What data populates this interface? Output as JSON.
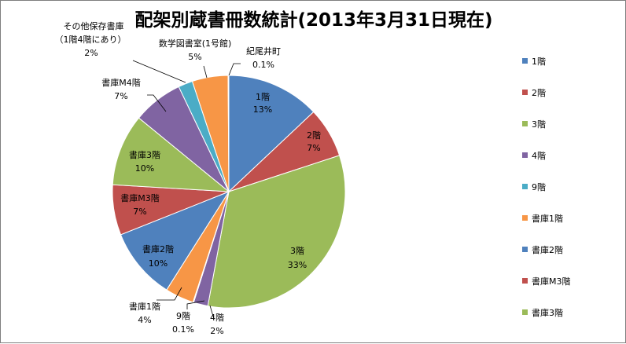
{
  "chart_data": {
    "type": "pie",
    "title": "配架別蔵書冊数統計(2013年3月31日現在)",
    "slices": [
      {
        "name": "1階",
        "value": 13,
        "label": "13%",
        "color": "#4f81bd"
      },
      {
        "name": "2階",
        "value": 7,
        "label": "7%",
        "color": "#c0504d"
      },
      {
        "name": "3階",
        "value": 33,
        "label": "33%",
        "color": "#9bbb59"
      },
      {
        "name": "4階",
        "value": 2,
        "label": "2%",
        "color": "#8064a2"
      },
      {
        "name": "9階",
        "value": 0.1,
        "label": "0.1%",
        "color": "#4bacc6"
      },
      {
        "name": "書庫1階",
        "value": 4,
        "label": "4%",
        "color": "#f79646"
      },
      {
        "name": "書庫2階",
        "value": 10,
        "label": "10%",
        "color": "#4f81bd"
      },
      {
        "name": "書庫M3階",
        "value": 7,
        "label": "7%",
        "color": "#c0504d"
      },
      {
        "name": "書庫3階",
        "value": 10,
        "label": "10%",
        "color": "#9bbb59"
      },
      {
        "name": "書庫M4階",
        "value": 7,
        "label": "7%",
        "color": "#8064a2"
      },
      {
        "name": "その他保存書庫（1階4階にあり）",
        "value": 2,
        "label": "2%",
        "color": "#4bacc6"
      },
      {
        "name": "数学図書室(1号館)",
        "value": 5,
        "label": "5%",
        "color": "#f79646"
      },
      {
        "name": "紀尾井町",
        "value": 0.1,
        "label": "0.1%",
        "color": "#4f81bd"
      }
    ],
    "outside_labels": {
      "s4a": "4階",
      "s4b": "2%",
      "s5a": "9階",
      "s5b": "0.1%",
      "s6a": "書庫1階",
      "s6b": "4%",
      "s10a": "その他保存書庫",
      "s10b": "（1階4階にあり）",
      "s10c": "2%",
      "s11a": "数学図書室(1号館)",
      "s11b": "5%",
      "s12a": "紀尾井町",
      "s12b": "0.1%"
    },
    "legend": {
      "position": "right",
      "entries": [
        "1階",
        "2階",
        "3階",
        "4階",
        "9階",
        "書庫1階",
        "書庫2階",
        "書庫M3階",
        "書庫3階"
      ]
    }
  }
}
